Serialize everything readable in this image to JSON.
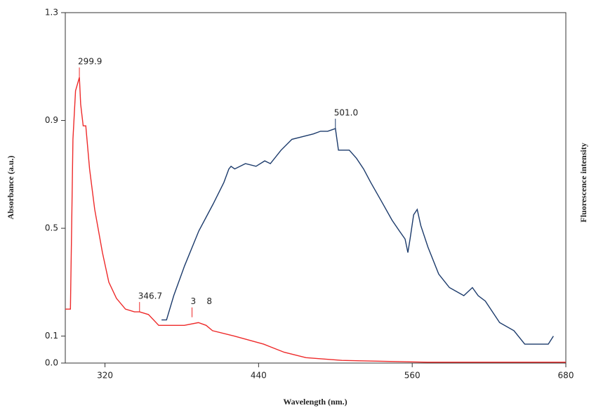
{
  "chart_data": {
    "type": "line",
    "xlabel": "Wavelength (nm.)",
    "ylabel": "Absorbance (a.u.)",
    "y2label": "Fluorescence intensity",
    "xlim": [
      289,
      680
    ],
    "xticks": [
      320,
      440,
      560,
      680
    ],
    "ylim": [
      0,
      1.3
    ],
    "yticks": [
      {
        "value": 0,
        "label": "0.0"
      },
      0.1,
      0.5,
      0.9,
      1.3
    ],
    "series": [
      {
        "color": "#ee2a2a",
        "x": [
          289,
          293,
          294,
          295,
          297,
          300,
          301,
          303,
          305,
          308,
          312,
          318,
          323,
          329,
          336,
          343,
          347,
          354,
          362,
          371,
          382,
          393,
          399,
          404,
          421,
          444,
          460,
          477,
          505,
          572,
          680
        ],
        "values": [
          0.2,
          0.2,
          0.51,
          0.83,
          1.01,
          1.06,
          0.96,
          0.88,
          0.88,
          0.72,
          0.57,
          0.41,
          0.3,
          0.24,
          0.2,
          0.19,
          0.19,
          0.18,
          0.14,
          0.14,
          0.14,
          0.15,
          0.14,
          0.12,
          0.1,
          0.07,
          0.04,
          0.02,
          0.01,
          0.003,
          0.003
        ]
      },
      {
        "color": "#1b3a6b",
        "x": [
          364.2,
          368.1,
          373.7,
          382.1,
          393.3,
          404.5,
          412.9,
          416.8,
          418.5,
          421.3,
          429.7,
          438,
          444.8,
          449.2,
          457.6,
          466,
          474.4,
          482.8,
          488.4,
          494,
          500,
          502.4,
          510.8,
          516.4,
          522,
          527.6,
          536,
          544.3,
          550,
          554.4,
          556.6,
          558.3,
          561.1,
          563.9,
          566.7,
          572.3,
          580.7,
          589.1,
          600.3,
          607,
          611.5,
          617.1,
          628.3,
          639.5,
          647.9,
          656.2,
          666.3,
          670.3
        ],
        "values": [
          0.16,
          0.16,
          0.25,
          0.36,
          0.49,
          0.59,
          0.67,
          0.72,
          0.73,
          0.72,
          0.74,
          0.73,
          0.75,
          0.74,
          0.79,
          0.83,
          0.84,
          0.85,
          0.86,
          0.86,
          0.87,
          0.79,
          0.79,
          0.76,
          0.72,
          0.67,
          0.6,
          0.53,
          0.49,
          0.46,
          0.41,
          0.46,
          0.55,
          0.57,
          0.51,
          0.43,
          0.33,
          0.28,
          0.25,
          0.28,
          0.25,
          0.23,
          0.15,
          0.12,
          0.07,
          0.07,
          0.07,
          0.1
        ]
      }
    ],
    "annotations": [
      {
        "text": "299.9",
        "x": 300,
        "y": 1.06,
        "color": "#ee2a2a"
      },
      {
        "text": "346.7",
        "x": 347,
        "y": 0.19,
        "color": "#ee2a2a"
      },
      {
        "text": "3    8",
        "x": 388,
        "y": 0.17,
        "color": "#ee2a2a"
      },
      {
        "text": "501.0",
        "x": 500,
        "y": 0.87,
        "color": "#1b3a6b"
      }
    ]
  }
}
